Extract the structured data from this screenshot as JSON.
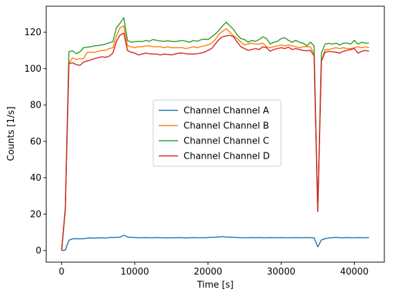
{
  "chart_data": {
    "type": "line",
    "title": "",
    "xlabel": "Time [s]",
    "ylabel": "Counts [1/s]",
    "xlim": [
      -2100,
      44100
    ],
    "ylim": [
      -6.4,
      134.3
    ],
    "xticks": [
      0,
      10000,
      20000,
      30000,
      40000
    ],
    "yticks": [
      0,
      20,
      40,
      60,
      80,
      100,
      120
    ],
    "grid": false,
    "legend_position": "center",
    "colors": {
      "Channel Channel A": "#1f77b4",
      "Channel Channel B": "#ff7f0e",
      "Channel Channel C": "#2ca02c",
      "Channel Channel D": "#d62728"
    },
    "x": [
      0,
      500,
      1000,
      1500,
      2000,
      2500,
      3000,
      3500,
      4000,
      4500,
      5000,
      5500,
      6000,
      6500,
      7000,
      7500,
      8000,
      8500,
      9000,
      9500,
      10000,
      10500,
      11000,
      11500,
      12000,
      12500,
      13000,
      13500,
      14000,
      14500,
      15000,
      15500,
      16000,
      16500,
      17000,
      17500,
      18000,
      18500,
      19000,
      19500,
      20000,
      20500,
      21000,
      21500,
      22000,
      22500,
      23000,
      23500,
      24000,
      24500,
      25000,
      25500,
      26000,
      26500,
      27000,
      27500,
      28000,
      28500,
      29000,
      29500,
      30000,
      30500,
      31000,
      31500,
      32000,
      32500,
      33000,
      33500,
      34000,
      34500,
      35000,
      35500,
      36000,
      36500,
      37000,
      37500,
      38000,
      38500,
      39000,
      39500,
      40000,
      40500,
      41000,
      41500,
      42000
    ],
    "series": [
      {
        "name": "Channel Channel A",
        "values": [
          0,
          0.2,
          5.6,
          6.4,
          6.5,
          6.4,
          6.5,
          6.8,
          6.9,
          6.8,
          6.9,
          7.0,
          6.8,
          7.1,
          7.1,
          7.2,
          7.3,
          8.4,
          7.4,
          7.2,
          7.1,
          7.0,
          7.0,
          7.1,
          7.0,
          7.0,
          7.1,
          7.0,
          7.0,
          6.9,
          7.0,
          7.0,
          7.1,
          7.0,
          6.9,
          7.0,
          7.1,
          7.0,
          7.0,
          7.0,
          7.1,
          7.2,
          7.3,
          7.5,
          7.6,
          7.4,
          7.3,
          7.2,
          7.1,
          7.0,
          7.0,
          7.0,
          7.1,
          7.0,
          7.1,
          7.0,
          7.0,
          7.1,
          7.0,
          7.0,
          7.1,
          7.0,
          7.0,
          7.0,
          7.1,
          7.0,
          7.0,
          7.1,
          7.0,
          7.0,
          2.0,
          5.8,
          6.5,
          6.9,
          7.0,
          7.2,
          7.0,
          7.0,
          7.1,
          7.0,
          7.0,
          7.1,
          7.0,
          7.0,
          7.1
        ]
      },
      {
        "name": "Channel Channel B",
        "values": [
          0,
          22,
          103,
          106,
          105,
          105.5,
          105.5,
          109,
          109,
          109,
          109.5,
          110,
          110,
          111,
          111.5,
          118,
          122.5,
          123.5,
          112.5,
          112,
          111.5,
          112,
          112,
          112.5,
          112.5,
          112,
          112,
          112,
          111.5,
          112,
          111.5,
          111.5,
          111.5,
          111.5,
          111,
          111.5,
          112,
          111.5,
          112,
          112.5,
          113,
          114,
          116,
          119,
          120.5,
          122,
          120,
          118,
          116.5,
          114.5,
          113,
          113.5,
          114,
          113.5,
          113.5,
          114,
          112,
          111.5,
          112,
          112.5,
          113,
          112.5,
          113,
          112.5,
          112,
          111.5,
          112,
          112,
          112,
          108,
          21.5,
          104,
          110.5,
          110.5,
          111,
          111.5,
          111,
          111.5,
          111,
          111,
          111.5,
          112,
          111.5,
          112,
          111.5
        ]
      },
      {
        "name": "Channel Channel C",
        "values": [
          0,
          22,
          109.3,
          109.8,
          108.2,
          109.2,
          111.5,
          111.8,
          112.0,
          112.5,
          112.7,
          113.0,
          113.5,
          114.2,
          114.8,
          122.5,
          125.0,
          128.0,
          115.5,
          114.5,
          114.8,
          115.0,
          114.8,
          115.5,
          115.0,
          116.0,
          115.5,
          115.2,
          115.0,
          115.3,
          115.0,
          114.8,
          115.2,
          115.5,
          115.0,
          114.5,
          115.5,
          115.0,
          115.8,
          116.2,
          116.0,
          117.5,
          119.0,
          121.0,
          123.5,
          125.5,
          123.5,
          121.5,
          118.5,
          116.5,
          116.0,
          114.5,
          115.5,
          115.0,
          116.0,
          117.5,
          116.5,
          113.5,
          114.5,
          115.0,
          116.5,
          117.0,
          115.5,
          114.5,
          115.5,
          114.5,
          114.0,
          112.5,
          114.5,
          112.5,
          21.5,
          108.5,
          113.5,
          113.8,
          113.5,
          114.0,
          113.0,
          114.0,
          114.0,
          113.5,
          115.5,
          113.5,
          114.5,
          114.0,
          114.0
        ]
      },
      {
        "name": "Channel Channel D",
        "values": [
          0,
          23,
          102.8,
          103.2,
          102.2,
          101.8,
          103.5,
          104.2,
          104.8,
          105.5,
          106.0,
          106.5,
          106.2,
          106.8,
          108.5,
          115.0,
          118.5,
          119.5,
          110.0,
          109.0,
          108.5,
          107.5,
          108.0,
          108.5,
          108.2,
          108.0,
          108.0,
          107.5,
          108.0,
          107.8,
          107.5,
          108.0,
          108.5,
          108.5,
          108.2,
          108.0,
          108.0,
          108.2,
          108.5,
          109.0,
          110.0,
          111.0,
          113.5,
          116.0,
          117.5,
          118.0,
          118.3,
          117.5,
          114.5,
          112.0,
          111.0,
          110.0,
          110.5,
          111.0,
          110.5,
          112.0,
          111.5,
          109.5,
          110.5,
          111.0,
          111.5,
          111.0,
          111.8,
          110.5,
          111.0,
          110.5,
          110.0,
          109.8,
          110.0,
          107.0,
          21.5,
          104.0,
          109.0,
          109.5,
          109.2,
          109.0,
          108.5,
          109.5,
          110.0,
          110.5,
          111.0,
          108.5,
          109.5,
          110.0,
          109.5
        ]
      }
    ]
  }
}
